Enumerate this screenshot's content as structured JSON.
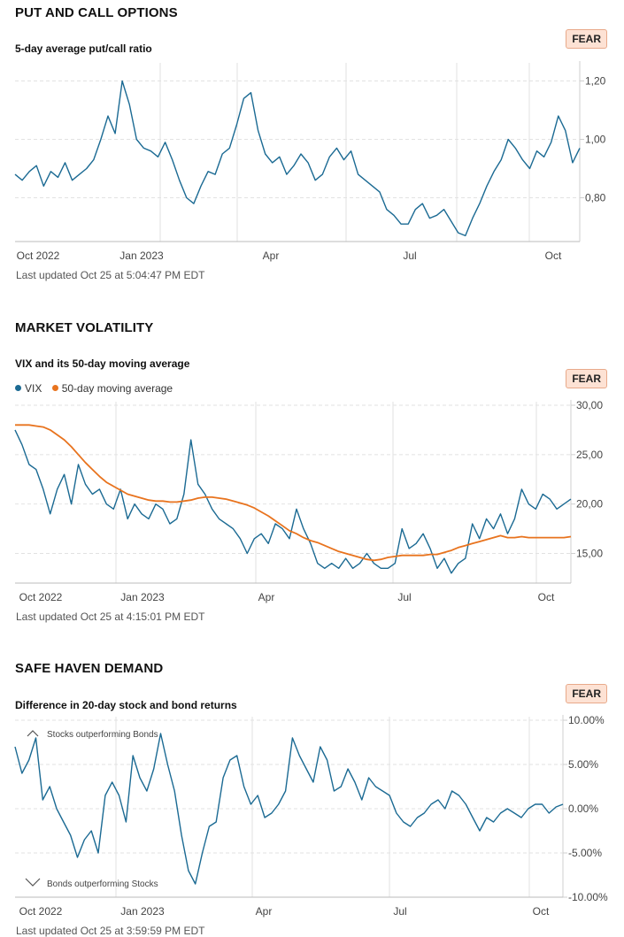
{
  "sections": [
    {
      "title": "PUT AND CALL OPTIONS",
      "subtitle": "5-day average put/call ratio",
      "badge": "FEAR",
      "updated": "Last updated Oct 25 at 5:04:47 PM EDT"
    },
    {
      "title": "MARKET VOLATILITY",
      "subtitle": "VIX and its 50-day moving average",
      "badge": "FEAR",
      "updated": "Last updated Oct 25 at 4:15:01 PM EDT",
      "legend": [
        "VIX",
        "50-day moving average"
      ]
    },
    {
      "title": "SAFE HAVEN DEMAND",
      "subtitle": "Difference in 20-day stock and bond returns",
      "badge": "FEAR",
      "updated": "Last updated Oct 25 at 3:59:59 PM EDT",
      "annotation_top": "Stocks outperforming Bonds",
      "annotation_bottom": "Bonds outperforming Stocks"
    }
  ],
  "colors": {
    "primary": "#1b6a93",
    "orange": "#e8731e",
    "badge_bg": "#fde2d4",
    "grid": "#e2e2e2"
  },
  "chart_data": [
    {
      "type": "line",
      "title": "5-day average put/call ratio",
      "x_ticks": [
        "Oct 2022",
        "Jan 2023",
        "Apr",
        "Jul",
        "Oct"
      ],
      "y_ticks": [
        "0,80",
        "1,00",
        "1,20"
      ],
      "ylim": [
        0.65,
        1.25
      ],
      "x": [
        0,
        5,
        10,
        15,
        20,
        25,
        30,
        35,
        40,
        45,
        50,
        55,
        60,
        65,
        70,
        75,
        80,
        85,
        90,
        95,
        100,
        105,
        110,
        115,
        120,
        125,
        130,
        135,
        140,
        145,
        150,
        155,
        160,
        165,
        170,
        175,
        180,
        185,
        190,
        195,
        200,
        205,
        210,
        215,
        220,
        225,
        230,
        235,
        240,
        245,
        250,
        255,
        260,
        265,
        270,
        275,
        280,
        285,
        290,
        295,
        300,
        305,
        310,
        315,
        320,
        325,
        330,
        335,
        340,
        345,
        350,
        355,
        360,
        365,
        370,
        375,
        380,
        385,
        390,
        395
      ],
      "series": [
        {
          "values": [
            0.88,
            0.86,
            0.89,
            0.91,
            0.84,
            0.89,
            0.87,
            0.92,
            0.86,
            0.88,
            0.9,
            0.93,
            1.0,
            1.08,
            1.02,
            1.2,
            1.12,
            1.0,
            0.97,
            0.96,
            0.94,
            0.99,
            0.93,
            0.86,
            0.8,
            0.78,
            0.84,
            0.89,
            0.88,
            0.95,
            0.97,
            1.05,
            1.14,
            1.16,
            1.03,
            0.95,
            0.92,
            0.94,
            0.88,
            0.91,
            0.95,
            0.92,
            0.86,
            0.88,
            0.94,
            0.97,
            0.93,
            0.96,
            0.88,
            0.86,
            0.84,
            0.82,
            0.76,
            0.74,
            0.71,
            0.71,
            0.76,
            0.78,
            0.73,
            0.74,
            0.76,
            0.72,
            0.68,
            0.67,
            0.73,
            0.78,
            0.84,
            0.89,
            0.93,
            1.0,
            0.97,
            0.93,
            0.9,
            0.96,
            0.94,
            0.99,
            1.08,
            1.03,
            0.92,
            0.97
          ]
        }
      ]
    },
    {
      "type": "line",
      "title": "VIX and its 50-day moving average",
      "x_ticks": [
        "Oct 2022",
        "Jan 2023",
        "Apr",
        "Jul",
        "Oct"
      ],
      "y_ticks": [
        "15,00",
        "20,00",
        "25,00",
        "30,00"
      ],
      "ylim": [
        12.0,
        30.0
      ],
      "x": [
        0,
        5,
        10,
        15,
        20,
        25,
        30,
        35,
        40,
        45,
        50,
        55,
        60,
        65,
        70,
        75,
        80,
        85,
        90,
        95,
        100,
        105,
        110,
        115,
        120,
        125,
        130,
        135,
        140,
        145,
        150,
        155,
        160,
        165,
        170,
        175,
        180,
        185,
        190,
        195,
        200,
        205,
        210,
        215,
        220,
        225,
        230,
        235,
        240,
        245,
        250,
        255,
        260,
        265,
        270,
        275,
        280,
        285,
        290,
        295,
        300,
        305,
        310,
        315,
        320,
        325,
        330,
        335,
        340,
        345,
        350,
        355,
        360,
        365,
        370,
        375,
        380,
        385,
        390,
        395
      ],
      "series": [
        {
          "name": "VIX",
          "values": [
            27.5,
            26.0,
            24.0,
            23.5,
            21.5,
            19.0,
            21.5,
            23.0,
            20.0,
            24.0,
            22.0,
            21.0,
            21.5,
            20.0,
            19.5,
            21.5,
            18.5,
            20.0,
            19.0,
            18.5,
            20.0,
            19.5,
            18.0,
            18.5,
            21.0,
            26.5,
            22.0,
            21.0,
            19.5,
            18.5,
            18.0,
            17.5,
            16.5,
            15.0,
            16.5,
            17.0,
            16.0,
            18.0,
            17.5,
            16.5,
            19.5,
            17.5,
            16.0,
            14.0,
            13.5,
            14.0,
            13.5,
            14.5,
            13.5,
            14.0,
            15.0,
            14.0,
            13.5,
            13.5,
            14.0,
            17.5,
            15.5,
            16.0,
            17.0,
            15.5,
            13.5,
            14.5,
            13.0,
            14.0,
            14.5,
            18.0,
            16.5,
            18.5,
            17.5,
            19.0,
            17.0,
            18.5,
            21.5,
            20.0,
            19.5,
            21.0,
            20.5,
            19.5,
            20.0,
            20.5
          ]
        },
        {
          "name": "50-day moving average",
          "values": [
            28.0,
            28.0,
            28.0,
            27.9,
            27.8,
            27.5,
            27.0,
            26.5,
            25.8,
            25.0,
            24.2,
            23.5,
            22.8,
            22.2,
            21.8,
            21.4,
            21.0,
            20.8,
            20.6,
            20.4,
            20.3,
            20.3,
            20.2,
            20.2,
            20.3,
            20.4,
            20.6,
            20.7,
            20.7,
            20.6,
            20.5,
            20.3,
            20.1,
            19.9,
            19.6,
            19.2,
            18.8,
            18.3,
            17.8,
            17.3,
            17.0,
            16.6,
            16.3,
            16.1,
            15.8,
            15.5,
            15.2,
            15.0,
            14.8,
            14.6,
            14.4,
            14.3,
            14.4,
            14.6,
            14.7,
            14.8,
            14.8,
            14.8,
            14.8,
            14.9,
            14.9,
            15.1,
            15.3,
            15.6,
            15.8,
            16.0,
            16.2,
            16.4,
            16.6,
            16.8,
            16.6,
            16.6,
            16.7,
            16.6,
            16.6,
            16.6,
            16.6,
            16.6,
            16.6,
            16.7
          ]
        }
      ]
    },
    {
      "type": "line",
      "title": "Difference in 20-day stock and bond returns",
      "x_ticks": [
        "Oct 2022",
        "Jan 2023",
        "Apr",
        "Jul",
        "Oct"
      ],
      "y_ticks": [
        "-10.00%",
        "-5.00%",
        "0.00%",
        "5.00%",
        "10.00%"
      ],
      "ylim": [
        -10.0,
        10.0
      ],
      "x": [
        0,
        5,
        10,
        15,
        20,
        25,
        30,
        35,
        40,
        45,
        50,
        55,
        60,
        65,
        70,
        75,
        80,
        85,
        90,
        95,
        100,
        105,
        110,
        115,
        120,
        125,
        130,
        135,
        140,
        145,
        150,
        155,
        160,
        165,
        170,
        175,
        180,
        185,
        190,
        195,
        200,
        205,
        210,
        215,
        220,
        225,
        230,
        235,
        240,
        245,
        250,
        255,
        260,
        265,
        270,
        275,
        280,
        285,
        290,
        295,
        300,
        305,
        310,
        315,
        320,
        325,
        330,
        335,
        340,
        345,
        350,
        355,
        360,
        365,
        370,
        375,
        380,
        385,
        390,
        395
      ],
      "series": [
        {
          "values": [
            7.0,
            4.0,
            5.5,
            8.0,
            1.0,
            2.5,
            0.0,
            -1.5,
            -3.0,
            -5.5,
            -3.5,
            -2.5,
            -5.0,
            1.5,
            3.0,
            1.5,
            -1.5,
            6.0,
            3.5,
            2.0,
            4.5,
            8.5,
            5.0,
            2.0,
            -3.0,
            -7.0,
            -8.5,
            -5.0,
            -2.0,
            -1.5,
            3.5,
            5.5,
            6.0,
            2.5,
            0.5,
            1.5,
            -1.0,
            -0.5,
            0.5,
            2.0,
            8.0,
            6.0,
            4.5,
            3.0,
            7.0,
            5.5,
            2.0,
            2.5,
            4.5,
            3.0,
            1.0,
            3.5,
            2.5,
            2.0,
            1.5,
            -0.5,
            -1.5,
            -2.0,
            -1.0,
            -0.5,
            0.5,
            1.0,
            0.0,
            2.0,
            1.5,
            0.5,
            -1.0,
            -2.5,
            -1.0,
            -1.5,
            -0.5,
            0.0,
            -0.5,
            -1.0,
            0.0,
            0.5,
            0.5,
            -0.5,
            0.2,
            0.5
          ]
        }
      ]
    }
  ]
}
